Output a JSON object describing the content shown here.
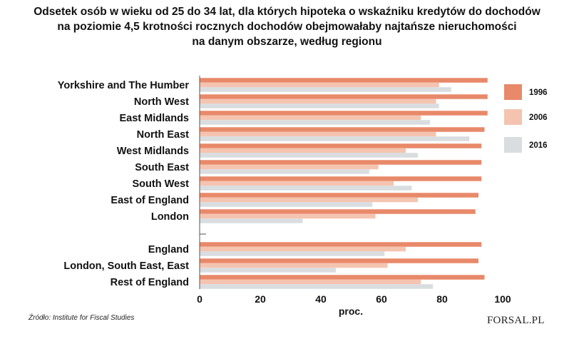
{
  "title_lines": [
    "Odsetek osób w wieku od 25 do 34 lat, dla których hipoteka o wskaźniku kredytów do dochodów",
    "na poziomie 4,5 krotności rocznych dochodów obejmowałaby najtańsze nieruchomości",
    "na danym obszarze, według regionu"
  ],
  "source": "Źródło: Institute for Fiscal Studies",
  "brand": "FORSAL.PL",
  "chart_data": {
    "type": "bar",
    "orientation": "horizontal",
    "xlabel": "proc.",
    "xlim": [
      0,
      100
    ],
    "xticks": [
      0,
      20,
      40,
      60,
      80,
      100
    ],
    "grid": false,
    "legend_position": "right",
    "categories": [
      "Yorkshire and The Humber",
      "North West",
      "East Midlands",
      "North East",
      "West Midlands",
      "South East",
      "South West",
      "East of England",
      "London",
      "",
      "England",
      "London, South East, East",
      "Rest of England"
    ],
    "series": [
      {
        "name": "1996",
        "color": "#e8896a",
        "values": [
          95,
          95,
          95,
          94,
          93,
          93,
          93,
          92,
          91,
          null,
          93,
          92,
          94
        ]
      },
      {
        "name": "2006",
        "color": "#f4c4b0",
        "values": [
          79,
          78,
          73,
          78,
          68,
          59,
          64,
          72,
          58,
          null,
          68,
          62,
          73
        ]
      },
      {
        "name": "2016",
        "color": "#d9dde0",
        "values": [
          83,
          79,
          76,
          89,
          72,
          56,
          70,
          57,
          34,
          null,
          61,
          45,
          77
        ]
      }
    ]
  }
}
